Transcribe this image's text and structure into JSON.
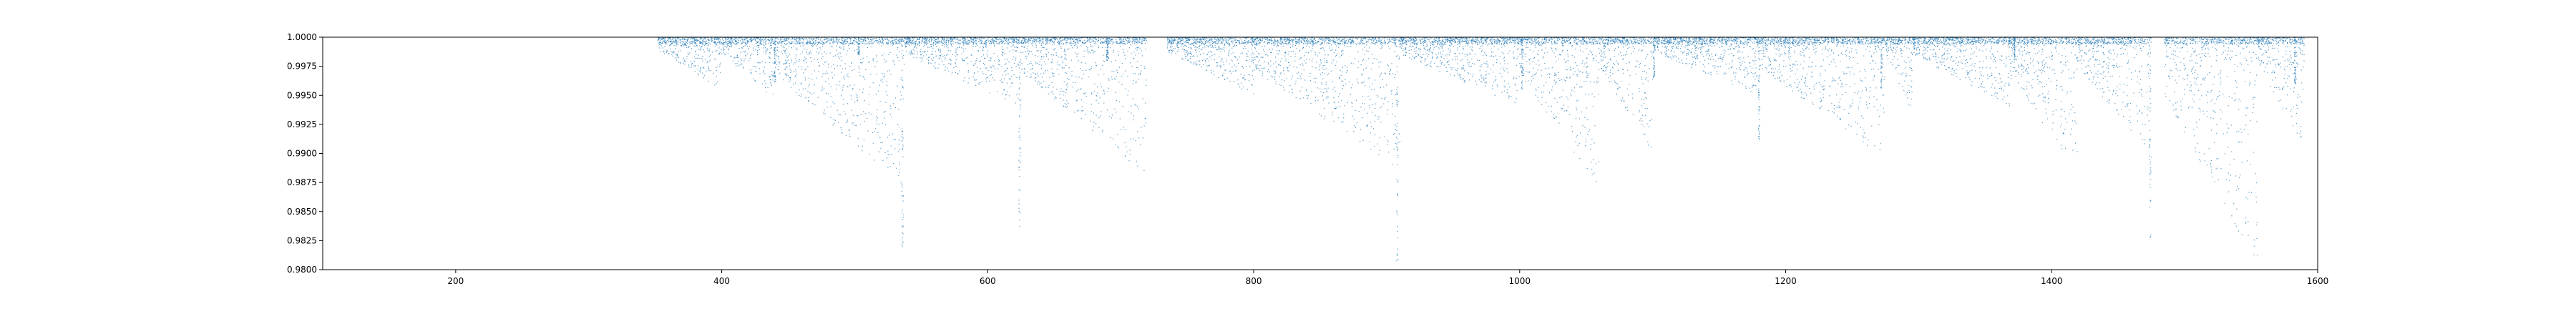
{
  "chart_data": {
    "type": "scatter",
    "title": "",
    "xlabel": "",
    "ylabel": "",
    "xlim": [
      100,
      1600
    ],
    "ylim": [
      0.98,
      1.0
    ],
    "x_ticks": [
      200,
      400,
      600,
      800,
      1000,
      1200,
      1400,
      1600
    ],
    "x_tick_labels": [
      "200",
      "400",
      "600",
      "800",
      "1000",
      "1200",
      "1400",
      "1600"
    ],
    "y_ticks": [
      0.98,
      0.9825,
      0.985,
      0.9875,
      0.99,
      0.9925,
      0.995,
      0.9975,
      1.0
    ],
    "y_tick_labels": [
      "0.9800",
      "0.9825",
      "0.9850",
      "0.9875",
      "0.9900",
      "0.9925",
      "0.9950",
      "0.9975",
      "1.0000"
    ],
    "grid": false,
    "marker_color": "#1f77b4",
    "segments": [
      {
        "x_start": 352,
        "x_end": 400,
        "y_floor": 0.9955
      },
      {
        "x_start": 400,
        "x_end": 440,
        "y_floor": 0.9945
      },
      {
        "x_start": 440,
        "x_end": 538,
        "y_floor": 0.987
      },
      {
        "x_start": 538,
        "x_end": 625,
        "y_floor": 0.994
      },
      {
        "x_start": 625,
        "x_end": 720,
        "y_floor": 0.988
      },
      {
        "x_start": 735,
        "x_end": 800,
        "y_floor": 0.995
      },
      {
        "x_start": 800,
        "x_end": 910,
        "y_floor": 0.9885
      },
      {
        "x_start": 910,
        "x_end": 1000,
        "y_floor": 0.994
      },
      {
        "x_start": 1000,
        "x_end": 1060,
        "y_floor": 0.987
      },
      {
        "x_start": 1060,
        "x_end": 1100,
        "y_floor": 0.99
      },
      {
        "x_start": 1100,
        "x_end": 1180,
        "y_floor": 0.995
      },
      {
        "x_start": 1180,
        "x_end": 1275,
        "y_floor": 0.9895
      },
      {
        "x_start": 1275,
        "x_end": 1295,
        "y_floor": 0.9935
      },
      {
        "x_start": 1295,
        "x_end": 1370,
        "y_floor": 0.994
      },
      {
        "x_start": 1370,
        "x_end": 1420,
        "y_floor": 0.9875
      },
      {
        "x_start": 1420,
        "x_end": 1475,
        "y_floor": 0.9895
      },
      {
        "x_start": 1485,
        "x_end": 1555,
        "y_floor": 0.98
      },
      {
        "x_start": 1555,
        "x_end": 1590,
        "y_floor": 0.9905
      }
    ],
    "spikes": [
      {
        "x": 440,
        "y_min": 0.996
      },
      {
        "x": 503,
        "y_min": 0.9985
      },
      {
        "x": 536,
        "y_min": 0.982
      },
      {
        "x": 624,
        "y_min": 0.9835
      },
      {
        "x": 690,
        "y_min": 0.998
      },
      {
        "x": 908,
        "y_min": 0.9805
      },
      {
        "x": 1002,
        "y_min": 0.9955
      },
      {
        "x": 1101,
        "y_min": 0.9965
      },
      {
        "x": 1180,
        "y_min": 0.991
      },
      {
        "x": 1272,
        "y_min": 0.995
      },
      {
        "x": 1372,
        "y_min": 0.998
      },
      {
        "x": 1474,
        "y_min": 0.982
      },
      {
        "x": 1583,
        "y_min": 0.996
      }
    ]
  }
}
